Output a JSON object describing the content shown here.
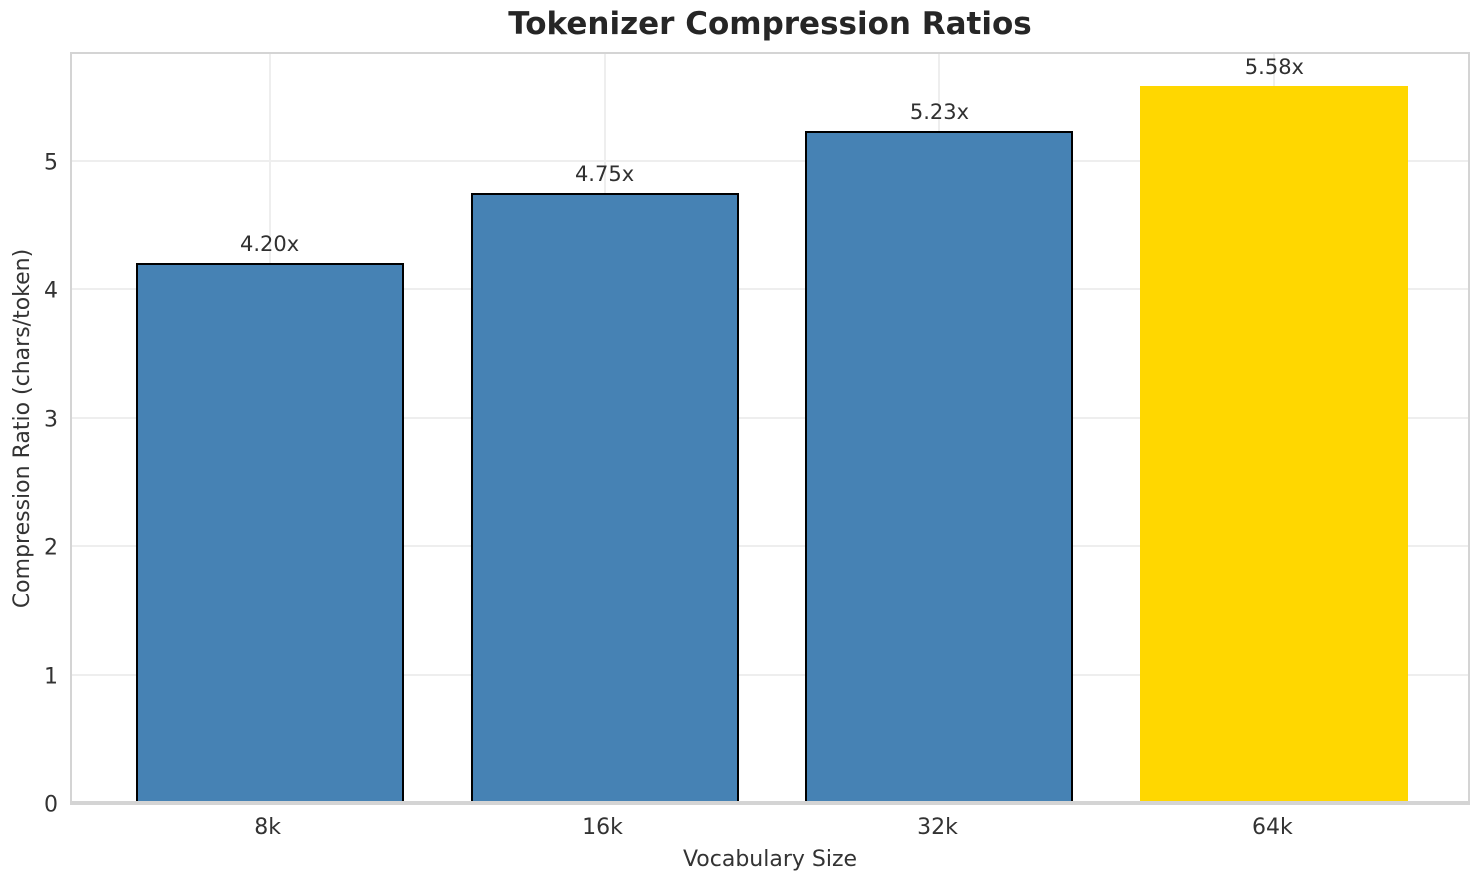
{
  "chart_data": {
    "type": "bar",
    "title": "Tokenizer Compression Ratios",
    "xlabel": "Vocabulary Size",
    "ylabel": "Compression Ratio (chars/token)",
    "categories": [
      "8k",
      "16k",
      "32k",
      "64k"
    ],
    "values": [
      4.2,
      4.75,
      5.23,
      5.58
    ],
    "bar_labels": [
      "4.20x",
      "4.75x",
      "5.23x",
      "5.58x"
    ],
    "bar_colors": [
      "#4682B4",
      "#4682B4",
      "#4682B4",
      "#FFD700"
    ],
    "bar_edge_colors": [
      "#000000",
      "#000000",
      "#000000",
      "none"
    ],
    "yticks": [
      0,
      1,
      2,
      3,
      4,
      5
    ],
    "ylim": [
      0,
      5.86
    ],
    "grid": true,
    "legend_position": "none",
    "background_color": "#ffffff",
    "grid_color": "#eeeeee",
    "spine_color": "#d4d4d4",
    "text_color": "#262626"
  }
}
